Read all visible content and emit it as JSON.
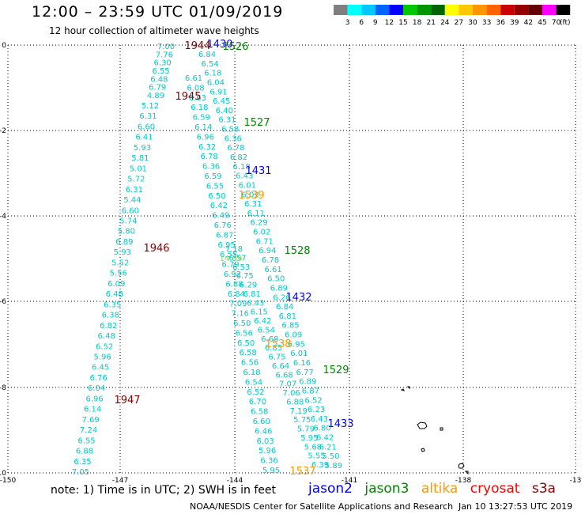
{
  "header": {
    "title": "12:00 – 23:59 UTC 01/09/2019",
    "subtitle": "12 hour collection of altimeter wave heights"
  },
  "colorbar": {
    "labels": [
      "3",
      "6",
      "9",
      "12",
      "15",
      "18",
      "21",
      "24",
      "27",
      "30",
      "33",
      "36",
      "39",
      "42",
      "45",
      "70"
    ],
    "unit": "(ft)",
    "colors": [
      "#7f7f7f",
      "#00ffff",
      "#00c8ff",
      "#0064ff",
      "#0000ff",
      "#00c800",
      "#009600",
      "#006400",
      "#ffff00",
      "#ffc800",
      "#ff9600",
      "#ff6400",
      "#c80000",
      "#960000",
      "#640000",
      "#ff00ff",
      "#000000"
    ]
  },
  "axes": {
    "x_ticks": [
      "-150",
      "-147",
      "-144",
      "-141",
      "-138",
      "-13"
    ],
    "y_ticks": [
      "0",
      "-2",
      "-4",
      "-6",
      "-8",
      "-10"
    ]
  },
  "track_colors": {
    "cyan": "#00cccc",
    "jason2": "#0000ff",
    "jason3": "#008800",
    "altika": "#ff9900",
    "cryosat": "#ff0000",
    "s3a": "#8b0000",
    "lime": "#88dd44"
  },
  "time_labels": [
    {
      "text": "1944",
      "color": "#8b0000"
    },
    {
      "text": "1430",
      "color": "#0000ff"
    },
    {
      "text": "1526",
      "color": "#008800"
    },
    {
      "text": "1945",
      "color": "#8b0000"
    },
    {
      "text": "1527",
      "color": "#008800"
    },
    {
      "text": "1431",
      "color": "#0000ff"
    },
    {
      "text": "1539",
      "color": "#ff9900"
    },
    {
      "text": "1946",
      "color": "#8b0000"
    },
    {
      "text": "1528",
      "color": "#008800"
    },
    {
      "text": "1432",
      "color": "#0000ff"
    },
    {
      "text": "1538",
      "color": "#ff9900"
    },
    {
      "text": "1529",
      "color": "#008800"
    },
    {
      "text": "1947",
      "color": "#8b0000"
    },
    {
      "text": "1433",
      "color": "#0000ff"
    },
    {
      "text": "1537",
      "color": "#ff9900"
    }
  ],
  "tracks": {
    "left": [
      "7.00",
      "7.76",
      "6.30",
      "6.55",
      "6.48",
      "6.79",
      "4.89",
      "5.12",
      "6.31",
      "6.60",
      "6.41",
      "5.93",
      "5.81",
      "5.01",
      "5.72",
      "6.31",
      "5.44",
      "6.60",
      "5.74",
      "5.80",
      "6.89",
      "5.93",
      "5.52",
      "5.56",
      "6.09",
      "6.48",
      "6.35",
      "6.38",
      "6.82",
      "6.48",
      "6.52",
      "5.96",
      "6.45",
      "6.76",
      "6.04",
      "6.96",
      "6.14",
      "7.69",
      "7.24",
      "6.55",
      "6.88",
      "6.35",
      "7.05"
    ],
    "mid": [
      "6.84",
      "6.54",
      "6.18",
      "6.04",
      "6.91",
      "6.45",
      "6.40",
      "6.31",
      "6.58",
      "6.36",
      "6.78",
      "6.82",
      "6.18",
      "6.43",
      "6.01",
      "6.03",
      "6.31",
      "6.11",
      "6.29",
      "6.02",
      "6.71",
      "6.94",
      "6.78",
      "6.61",
      "6.50",
      "6.89",
      "6.26",
      "6.84",
      "6.81",
      "6.85",
      "6.09",
      "6.95",
      "6.01",
      "6.16",
      "6.77",
      "6.89",
      "6.87",
      "6.52",
      "6.23",
      "6.43",
      "6.80",
      "6.42",
      "6.21",
      "5.50",
      "5.89"
    ],
    "center": [
      "6.61",
      "6.08",
      "6.63",
      "6.18",
      "6.59",
      "6.14",
      "6.96",
      "6.32",
      "6.78",
      "6.36",
      "6.59",
      "6.55",
      "6.50",
      "6.42",
      "6.49",
      "6.76",
      "6.87",
      "6.95",
      "6.55",
      "6.79",
      "6.92",
      "6.88",
      "6.84",
      "7.09",
      "7.16",
      "6.50",
      "6.56",
      "6.50",
      "6.58",
      "6.56",
      "6.18",
      "6.54",
      "6.52",
      "6.70",
      "6.58",
      "6.60",
      "6.46",
      "6.03",
      "5.96",
      "6.36",
      "5.95"
    ],
    "right": [
      "7.18",
      "6.57",
      "6.53",
      "6.75",
      "6.29",
      "6.81",
      "6.43",
      "6.15",
      "6.42",
      "6.54",
      "6.68",
      "6.85",
      "6.75",
      "6.64",
      "6.68",
      "7.07",
      "7.06",
      "6.88",
      "7.19",
      "5.75",
      "5.79",
      "5.95",
      "5.68",
      "5.55",
      "6.39"
    ],
    "lime_value": "14.39"
  },
  "footer": {
    "note": "note: 1) Time is in UTC; 2) SWH is in feet",
    "credit": "NOAA/NESDIS Center for Satellite Applications and Research",
    "timestamp": "Jan 10 13:27:53 UTC 2019"
  },
  "legend": {
    "jason2": "jason2",
    "jason3": "jason3",
    "altika": "altika",
    "cryosat": "cryosat",
    "s3a": "s3a"
  }
}
